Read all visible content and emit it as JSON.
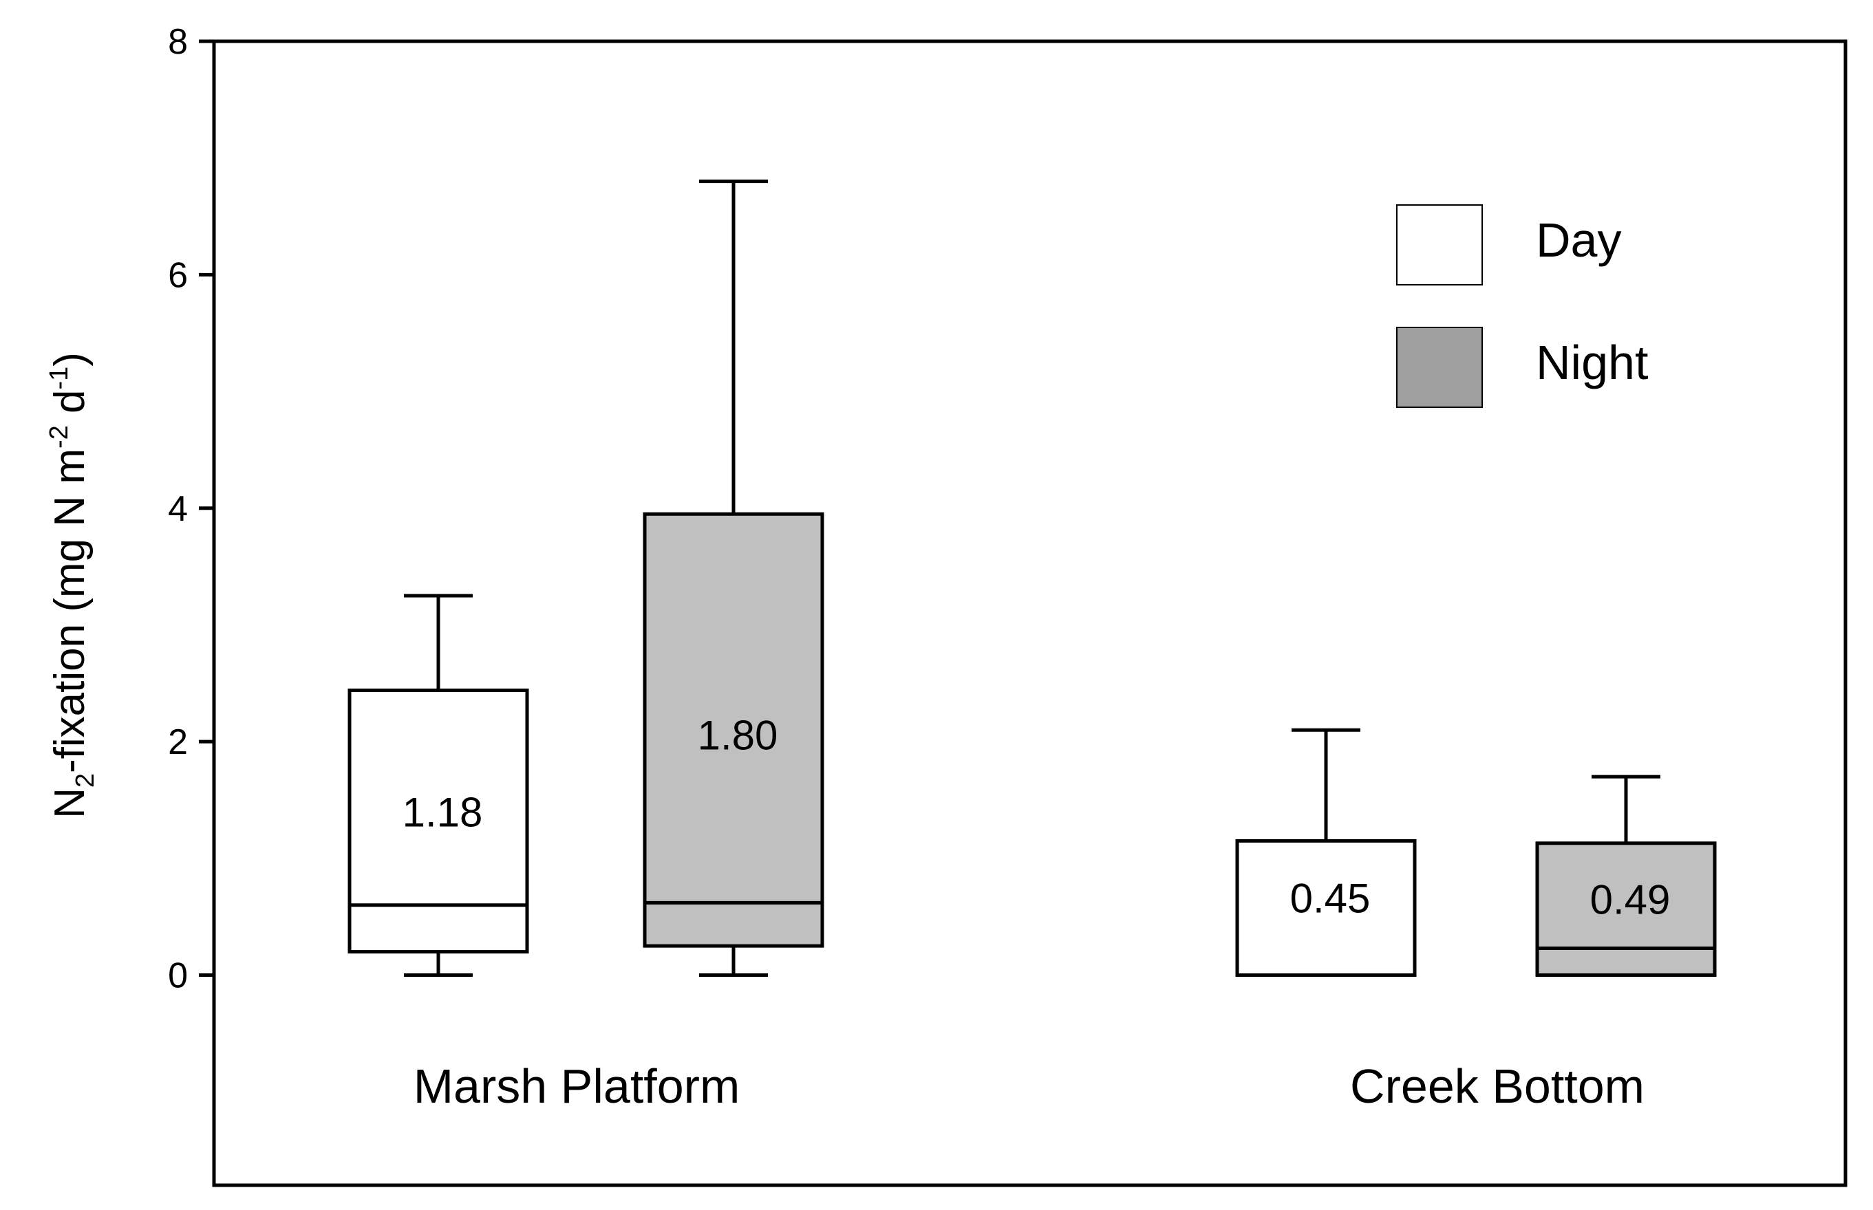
{
  "chart_data": {
    "type": "boxplot",
    "ylabel": {
      "prefix": "N",
      "sub": "2",
      "main": "-fixation (mg N m",
      "sup1": "-2",
      "mid": " d",
      "sup2": "-1",
      "end": ")"
    },
    "ylim": [
      -1.8,
      8
    ],
    "yticks": [
      0,
      2,
      4,
      6,
      8
    ],
    "ytick_labels": [
      "0",
      "2",
      "4",
      "6",
      "8"
    ],
    "grid": false,
    "legend_position": "top-right",
    "series": [
      {
        "name": "Day",
        "color": "#ffffff"
      },
      {
        "name": "Night",
        "color": "#c0c0c0"
      }
    ],
    "legend": [
      {
        "name": "Day",
        "color": "#ffffff"
      },
      {
        "name": "Night",
        "color": "#9f9f9f"
      }
    ],
    "groups": [
      {
        "label": "Marsh Platform",
        "boxes": [
          {
            "series": "Day",
            "whisker_low": 0,
            "q1": 0.2,
            "median": 0.6,
            "q3": 2.44,
            "whisker_high": 3.25,
            "mean_label": "1.18"
          },
          {
            "series": "Night",
            "whisker_low": 0,
            "q1": 0.25,
            "median": 0.62,
            "q3": 3.95,
            "whisker_high": 6.8,
            "mean_label": "1.80"
          }
        ]
      },
      {
        "label": "Creek Bottom",
        "boxes": [
          {
            "series": "Day",
            "whisker_low": 0,
            "q1": 0,
            "median": 0,
            "q3": 1.15,
            "whisker_high": 2.1,
            "mean_label": "0.45"
          },
          {
            "series": "Night",
            "whisker_low": 0,
            "q1": 0,
            "median": 0.23,
            "q3": 1.13,
            "whisker_high": 1.7,
            "mean_label": "0.49"
          }
        ]
      }
    ]
  }
}
